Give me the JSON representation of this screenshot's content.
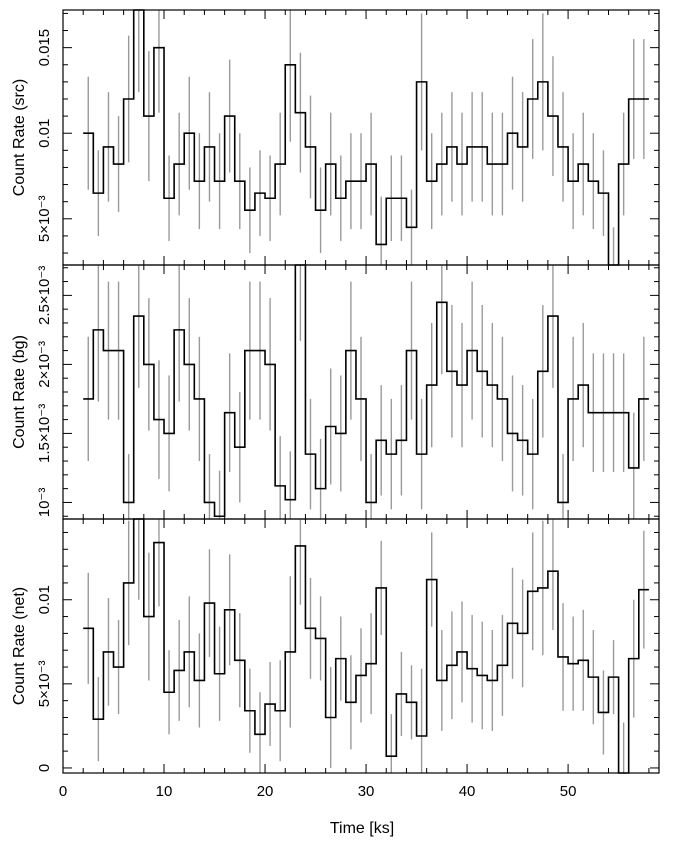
{
  "figure": {
    "xlabel": "Time [ks]",
    "xlim": [
      0,
      59
    ],
    "xtick_labels": [
      "0",
      "10",
      "20",
      "30",
      "40",
      "50"
    ],
    "xtick_values": [
      0,
      10,
      20,
      30,
      40,
      50
    ]
  },
  "chart_data": [
    {
      "type": "line",
      "style": "step",
      "ylabel": "Count Rate (src)",
      "ylim": [
        0.0023,
        0.0172
      ],
      "ytick_labels": [
        "5×10⁻³",
        "0.01",
        "0.015"
      ],
      "ytick_values": [
        0.005,
        0.01,
        0.015
      ],
      "x": [
        2.5,
        3.5,
        4.5,
        5.5,
        6.5,
        7.5,
        8.5,
        9.5,
        10.5,
        11.5,
        12.5,
        13.5,
        14.5,
        15.5,
        16.5,
        17.5,
        18.5,
        19.5,
        20.5,
        21.5,
        22.5,
        23.5,
        24.5,
        25.5,
        26.5,
        27.5,
        28.5,
        29.5,
        30.5,
        31.5,
        32.5,
        33.5,
        34.5,
        35.5,
        36.5,
        37.5,
        38.5,
        39.5,
        40.5,
        41.5,
        42.5,
        43.5,
        44.5,
        45.5,
        46.5,
        47.5,
        48.5,
        49.5,
        50.5,
        51.5,
        52.5,
        53.5,
        54.5,
        55.5,
        56.5,
        57.5
      ],
      "y": [
        0.01,
        0.0065,
        0.0092,
        0.0082,
        0.012,
        0.0172,
        0.011,
        0.015,
        0.0062,
        0.0082,
        0.01,
        0.0072,
        0.0092,
        0.0072,
        0.011,
        0.0072,
        0.0055,
        0.0065,
        0.0062,
        0.0082,
        0.014,
        0.0112,
        0.0092,
        0.0055,
        0.0082,
        0.0062,
        0.0072,
        0.0072,
        0.0082,
        0.0035,
        0.0062,
        0.0062,
        0.0045,
        0.013,
        0.0072,
        0.0082,
        0.0092,
        0.0082,
        0.0092,
        0.0092,
        0.0082,
        0.0082,
        0.01,
        0.0092,
        0.012,
        0.013,
        0.011,
        0.0092,
        0.0072,
        0.0082,
        0.0072,
        0.0065,
        0.0023,
        0.0082,
        0.012,
        0.012
      ],
      "yerr": [
        0.0033,
        0.0025,
        0.0032,
        0.0028,
        0.0037,
        0.0048,
        0.0038,
        0.0038,
        0.0025,
        0.003,
        0.0033,
        0.0028,
        0.0032,
        0.0028,
        0.0033,
        0.0028,
        0.0025,
        0.0025,
        0.0025,
        0.003,
        0.0045,
        0.0035,
        0.003,
        0.0025,
        0.003,
        0.0025,
        0.0028,
        0.0028,
        0.003,
        0.0028,
        0.0025,
        0.0025,
        0.0022,
        0.004,
        0.0028,
        0.003,
        0.0032,
        0.003,
        0.0032,
        0.0032,
        0.003,
        0.003,
        0.0033,
        0.0032,
        0.0035,
        0.004,
        0.0035,
        0.0032,
        0.0028,
        0.003,
        0.0028,
        0.0025,
        0.0022,
        0.003,
        0.0035,
        0.0035
      ]
    },
    {
      "type": "line",
      "style": "step",
      "ylabel": "Count Rate (bg)",
      "ylim": [
        0.00088,
        0.00272
      ],
      "ytick_labels": [
        "10⁻³",
        "1.5×10⁻³",
        "2×10⁻³",
        "2.5×10⁻³"
      ],
      "ytick_values": [
        0.001,
        0.0015,
        0.002,
        0.0025
      ],
      "x": [
        2.5,
        3.5,
        4.5,
        5.5,
        6.5,
        7.5,
        8.5,
        9.5,
        10.5,
        11.5,
        12.5,
        13.5,
        14.5,
        15.5,
        16.5,
        17.5,
        18.5,
        19.5,
        20.5,
        21.5,
        22.5,
        23.5,
        24.5,
        25.5,
        26.5,
        27.5,
        28.5,
        29.5,
        30.5,
        31.5,
        32.5,
        33.5,
        34.5,
        35.5,
        36.5,
        37.5,
        38.5,
        39.5,
        40.5,
        41.5,
        42.5,
        43.5,
        44.5,
        45.5,
        46.5,
        47.5,
        48.5,
        49.5,
        50.5,
        51.5,
        52.5,
        53.5,
        54.5,
        55.5,
        56.5,
        57.5
      ],
      "y": [
        0.00175,
        0.00225,
        0.0021,
        0.0021,
        0.001,
        0.00235,
        0.002,
        0.0016,
        0.0015,
        0.00225,
        0.002,
        0.00175,
        0.001,
        0.0009,
        0.00165,
        0.0014,
        0.0021,
        0.0021,
        0.002,
        0.00112,
        0.00102,
        0.00272,
        0.00135,
        0.0011,
        0.00155,
        0.0015,
        0.0021,
        0.00175,
        0.001,
        0.00145,
        0.00135,
        0.00145,
        0.0021,
        0.00135,
        0.00185,
        0.00245,
        0.00195,
        0.00185,
        0.0021,
        0.00195,
        0.00185,
        0.00175,
        0.0015,
        0.00145,
        0.00135,
        0.00195,
        0.00235,
        0.001,
        0.00175,
        0.00185,
        0.00165,
        0.00165,
        0.00165,
        0.00165,
        0.00125,
        0.00175
      ],
      "yerr": [
        0.00045,
        0.00052,
        0.0005,
        0.0005,
        0.00035,
        0.00052,
        0.00048,
        0.00043,
        0.00042,
        0.00052,
        0.00048,
        0.00045,
        0.00035,
        0.00033,
        0.00043,
        0.0004,
        0.0005,
        0.0005,
        0.00048,
        0.00036,
        0.00035,
        0.00055,
        0.0004,
        0.00036,
        0.00042,
        0.00042,
        0.0005,
        0.00045,
        0.00035,
        0.0004,
        0.0004,
        0.0004,
        0.0005,
        0.0004,
        0.00045,
        0.00052,
        0.00048,
        0.00045,
        0.0005,
        0.00048,
        0.00045,
        0.00045,
        0.00042,
        0.0004,
        0.0004,
        0.00048,
        0.00052,
        0.00035,
        0.00045,
        0.00045,
        0.00043,
        0.00043,
        0.00043,
        0.00043,
        0.0004,
        0.00045
      ]
    },
    {
      "type": "line",
      "style": "step",
      "ylabel": "Count Rate (net)",
      "ylim": [
        -0.0003,
        0.0148
      ],
      "ytick_labels": [
        "0",
        "5×10⁻³",
        "0.01"
      ],
      "ytick_values": [
        0,
        0.005,
        0.01
      ],
      "x": [
        2.5,
        3.5,
        4.5,
        5.5,
        6.5,
        7.5,
        8.5,
        9.5,
        10.5,
        11.5,
        12.5,
        13.5,
        14.5,
        15.5,
        16.5,
        17.5,
        18.5,
        19.5,
        20.5,
        21.5,
        22.5,
        23.5,
        24.5,
        25.5,
        26.5,
        27.5,
        28.5,
        29.5,
        30.5,
        31.5,
        32.5,
        33.5,
        34.5,
        35.5,
        36.5,
        37.5,
        38.5,
        39.5,
        40.5,
        41.5,
        42.5,
        43.5,
        44.5,
        45.5,
        46.5,
        47.5,
        48.5,
        49.5,
        50.5,
        51.5,
        52.5,
        53.5,
        54.5,
        55.5,
        56.5,
        57.5
      ],
      "y": [
        0.0083,
        0.0029,
        0.0069,
        0.006,
        0.011,
        0.0148,
        0.009,
        0.0134,
        0.0045,
        0.0058,
        0.0069,
        0.0052,
        0.0098,
        0.0056,
        0.0094,
        0.0064,
        0.0034,
        0.002,
        0.0038,
        0.0034,
        0.0069,
        0.0132,
        0.0083,
        0.0077,
        0.003,
        0.0065,
        0.0039,
        0.0055,
        0.0062,
        0.0107,
        0.0007,
        0.0044,
        0.0039,
        0.0019,
        0.0112,
        0.0052,
        0.0061,
        0.0069,
        0.0059,
        0.0055,
        0.0052,
        0.0061,
        0.0086,
        0.008,
        0.0105,
        0.0107,
        0.0117,
        0.0066,
        0.0062,
        0.0064,
        0.0054,
        0.0033,
        0.0054,
        -0.0003,
        0.0065,
        0.0106
      ],
      "yerr": [
        0.0033,
        0.0025,
        0.0032,
        0.0028,
        0.0037,
        0.0048,
        0.0038,
        0.0038,
        0.0025,
        0.003,
        0.0033,
        0.0028,
        0.0032,
        0.0028,
        0.0033,
        0.0028,
        0.0025,
        0.0025,
        0.0025,
        0.003,
        0.0045,
        0.0035,
        0.003,
        0.0025,
        0.003,
        0.0025,
        0.0028,
        0.0028,
        0.003,
        0.0028,
        0.0025,
        0.0025,
        0.0022,
        0.004,
        0.0028,
        0.003,
        0.0032,
        0.003,
        0.0032,
        0.0032,
        0.003,
        0.003,
        0.0033,
        0.0032,
        0.0035,
        0.004,
        0.0035,
        0.0032,
        0.0028,
        0.003,
        0.0028,
        0.0025,
        0.0022,
        0.003,
        0.0035,
        0.0035
      ]
    }
  ],
  "colors": {
    "line": "#000000",
    "errorbar": "#9a9a9a",
    "background": "#ffffff"
  }
}
